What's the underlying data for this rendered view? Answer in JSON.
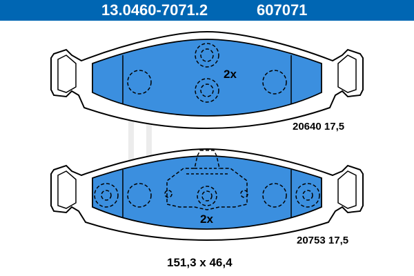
{
  "header": {
    "part_number": "13.0460-7071.2",
    "ref_number": "607071",
    "background_color": "#0066b3"
  },
  "pads": {
    "fill_color": "#3b8fdf",
    "upper": {
      "quantity_label": "2x",
      "code_label": "20640 17,5"
    },
    "lower": {
      "quantity_label": "2x",
      "code_label": "20753 17,5"
    }
  },
  "dimensions": "151,3 x 46,4",
  "watermark": {
    "brand": "ate"
  }
}
